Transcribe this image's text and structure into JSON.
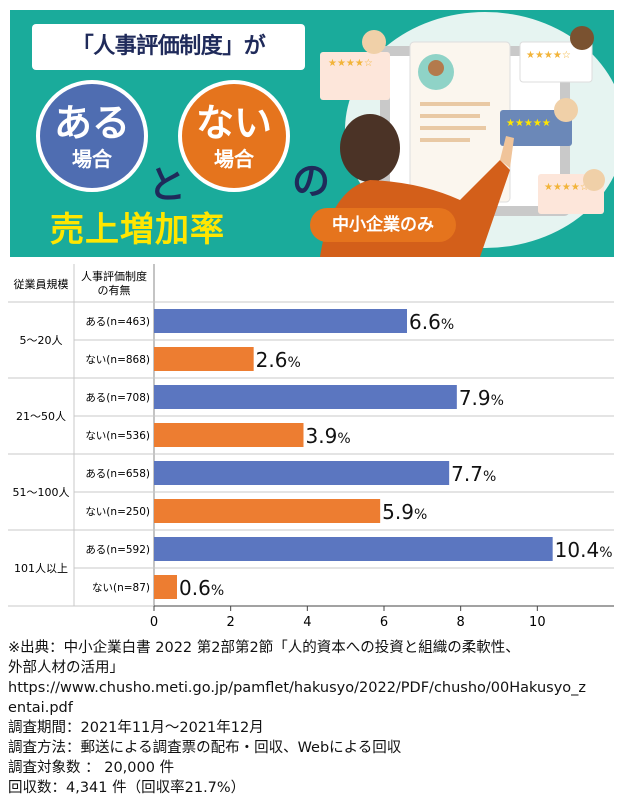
{
  "banner": {
    "title": "「人事評価制度」が",
    "circle_aru_big": "ある",
    "circle_aru_small": "場合",
    "connector": "と",
    "circle_nai_big": "ない",
    "circle_nai_small": "場合",
    "suffix": "の",
    "subtitle": "売上増加率",
    "badge": "中小企業のみ"
  },
  "colors": {
    "teal": "#1aab9b",
    "aru_bar": "#5b76c0",
    "nai_bar": "#ed7d31",
    "title_navy": "#1f2a5a",
    "subtitle_yellow": "#ffe600"
  },
  "chart_data": {
    "type": "bar",
    "orientation": "horizontal",
    "header_col1": "従業員規模",
    "header_col2_line1": "人事評価制度",
    "header_col2_line2": "の有無",
    "xlim": [
      0,
      12
    ],
    "xticks": [
      "0",
      "2",
      "4",
      "6",
      "8",
      "10"
    ],
    "groups": [
      {
        "label": "5～20人",
        "bars": [
          {
            "label": "ある(n=463)",
            "kind": "aru",
            "value": 6.6,
            "value_label": "6.6",
            "unit": "%"
          },
          {
            "label": "ない(n=868)",
            "kind": "nai",
            "value": 2.6,
            "value_label": "2.6",
            "unit": "%"
          }
        ]
      },
      {
        "label": "21～50人",
        "bars": [
          {
            "label": "ある(n=708)",
            "kind": "aru",
            "value": 7.9,
            "value_label": "7.9",
            "unit": "%"
          },
          {
            "label": "ない(n=536)",
            "kind": "nai",
            "value": 3.9,
            "value_label": "3.9",
            "unit": "%"
          }
        ]
      },
      {
        "label": "51～100人",
        "bars": [
          {
            "label": "ある(n=658)",
            "kind": "aru",
            "value": 7.7,
            "value_label": "7.7",
            "unit": "%"
          },
          {
            "label": "ない(n=250)",
            "kind": "nai",
            "value": 5.9,
            "value_label": "5.9",
            "unit": "%"
          }
        ]
      },
      {
        "label": "101人以上",
        "bars": [
          {
            "label": "ある(n=592)",
            "kind": "aru",
            "value": 10.4,
            "value_label": "10.4",
            "unit": "%"
          },
          {
            "label": "ない(n=87)",
            "kind": "nai",
            "value": 0.6,
            "value_label": "0.6",
            "unit": "%"
          }
        ]
      }
    ]
  },
  "footnote": {
    "line1": "※出典：中小企業白書 2022 第2部第2節「人的資本への投資と組織の柔軟性、",
    "line2": "外部人材の活用」",
    "line3": "https://www.chusho.meti.go.jp/pamflet/hakusyo/2022/PDF/chusho/00Hakusyo_z",
    "line4": "entai.pdf",
    "line5": "調査期間：2021年11月～2021年12月",
    "line6": "調査方法：郵送による調査票の配布・回収、Webによる回収",
    "line7": "調査対象数 ： 20,000 件",
    "line8": "回収数：4,341 件（回収率21.7%）"
  }
}
